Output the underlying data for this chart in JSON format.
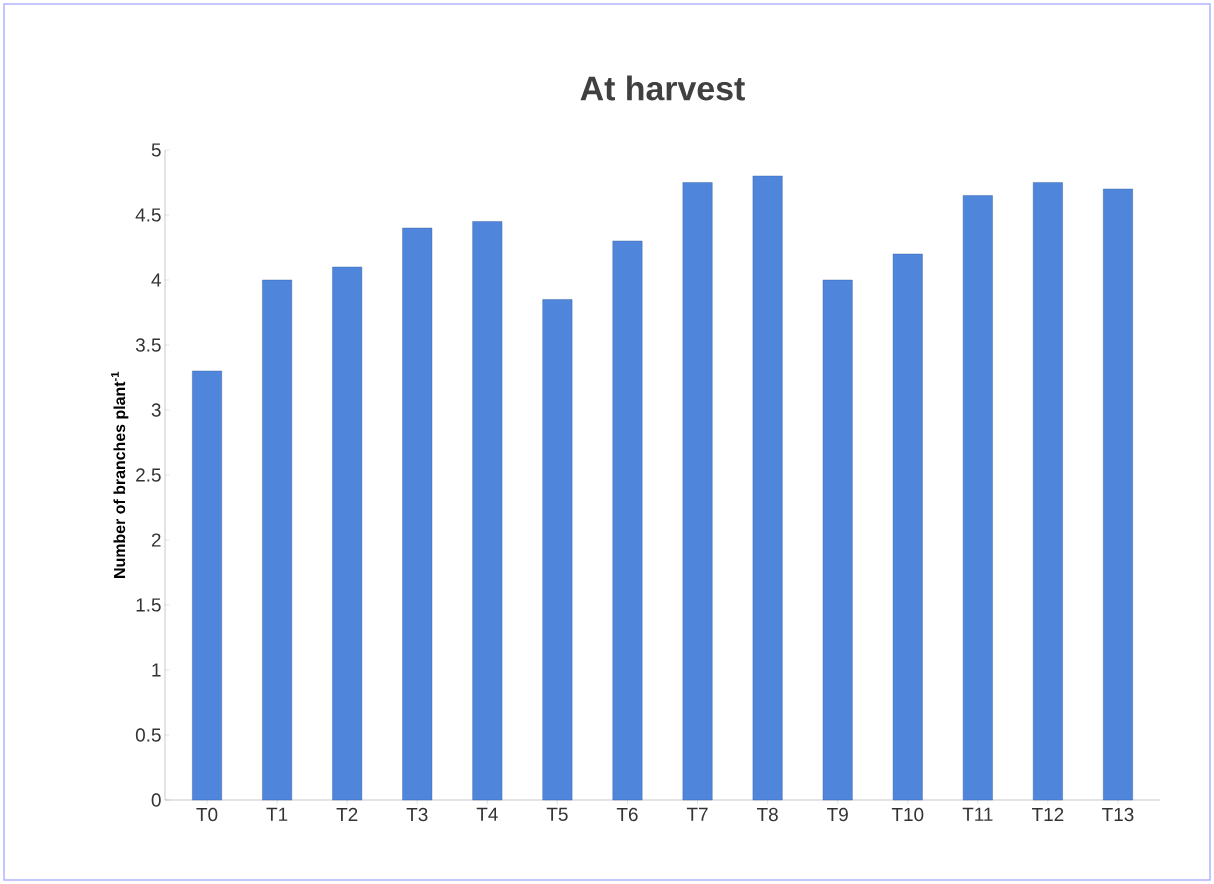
{
  "chart_data": {
    "type": "bar",
    "title": "At harvest",
    "ylabel": "Number of branches plant$^{-1}$",
    "categories": [
      "T0",
      "T1",
      "T2",
      "T3",
      "T4",
      "T5",
      "T6",
      "T7",
      "T8",
      "T9",
      "T10",
      "T11",
      "T12",
      "T13"
    ],
    "values": [
      3.3,
      4.0,
      4.1,
      4.4,
      4.45,
      3.85,
      4.3,
      4.75,
      4.8,
      4.0,
      4.2,
      4.65,
      4.75,
      4.7
    ],
    "color": "#4f86dc",
    "ylim": [
      0,
      5
    ],
    "yticks": [
      0,
      0.5,
      1,
      1.5,
      2,
      2.5,
      3,
      3.5,
      4,
      4.5,
      5
    ],
    "grid": false
  }
}
